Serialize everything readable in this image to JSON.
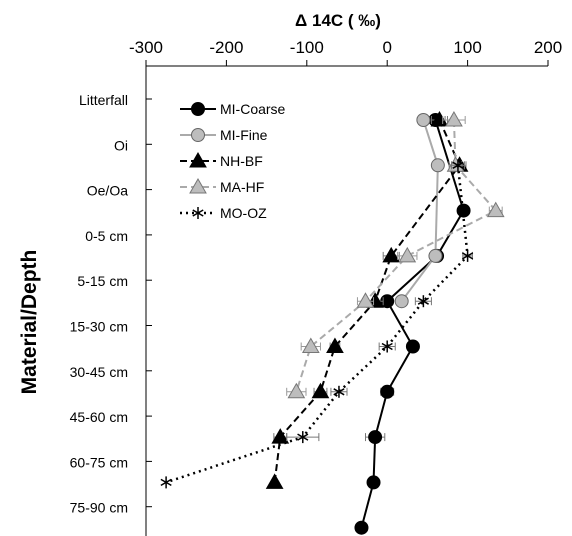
{
  "chart_data": {
    "type": "line",
    "title": "Δ 14C ( ‰)",
    "xlabel": "Δ 14C ( ‰)",
    "ylabel": "Material/Depth",
    "x_axis_position": "top",
    "xlim": [
      -300,
      200
    ],
    "xticks": [
      -300,
      -200,
      -100,
      0,
      100,
      200
    ],
    "categories": [
      "Litterfall",
      "Oi",
      "Oe/Oa",
      "0-5 cm",
      "5-15 cm",
      "15-30 cm",
      "30-45 cm",
      "45-60 cm",
      "60-75 cm",
      "75-90 cm"
    ],
    "legend_position": "top-left",
    "grid": false,
    "series": [
      {
        "name": "MI-Coarse",
        "color": "#000000",
        "line": "solid",
        "marker": "circle-black",
        "values": [
          60,
          null,
          95,
          62,
          0,
          32,
          0,
          -15,
          -17,
          -32
        ],
        "errors": [
          12,
          null,
          5,
          6,
          6,
          4,
          8,
          12,
          6,
          6
        ]
      },
      {
        "name": "MI-Fine",
        "color": "#aaaaaa",
        "line": "solid",
        "marker": "circle-gray",
        "values": [
          45,
          63,
          null,
          60,
          18,
          null,
          null,
          null,
          null,
          null
        ],
        "errors": [
          6,
          5,
          null,
          6,
          6,
          null,
          null,
          null,
          null,
          null
        ]
      },
      {
        "name": "NH-BF",
        "color": "#000000",
        "line": "dashed",
        "marker": "triangle-black",
        "values": [
          65,
          90,
          null,
          5,
          -15,
          -65,
          -83,
          -133,
          -140,
          null
        ],
        "errors": [
          10,
          8,
          null,
          10,
          10,
          6,
          8,
          8,
          null,
          null
        ]
      },
      {
        "name": "MA-HF",
        "color": "#aaaaaa",
        "line": "dashed",
        "marker": "triangle-gray",
        "values": [
          83,
          85,
          135,
          25,
          -27,
          -95,
          -113,
          null,
          null,
          null
        ],
        "errors": [
          14,
          8,
          8,
          12,
          10,
          12,
          12,
          null,
          null,
          null
        ]
      },
      {
        "name": "MO-OZ",
        "color": "#000000",
        "line": "dotted",
        "marker": "star",
        "values": [
          null,
          88,
          null,
          100,
          45,
          0,
          -60,
          -105,
          -275,
          null
        ],
        "errors": [
          null,
          8,
          null,
          6,
          10,
          10,
          10,
          20,
          null,
          null
        ]
      }
    ]
  }
}
